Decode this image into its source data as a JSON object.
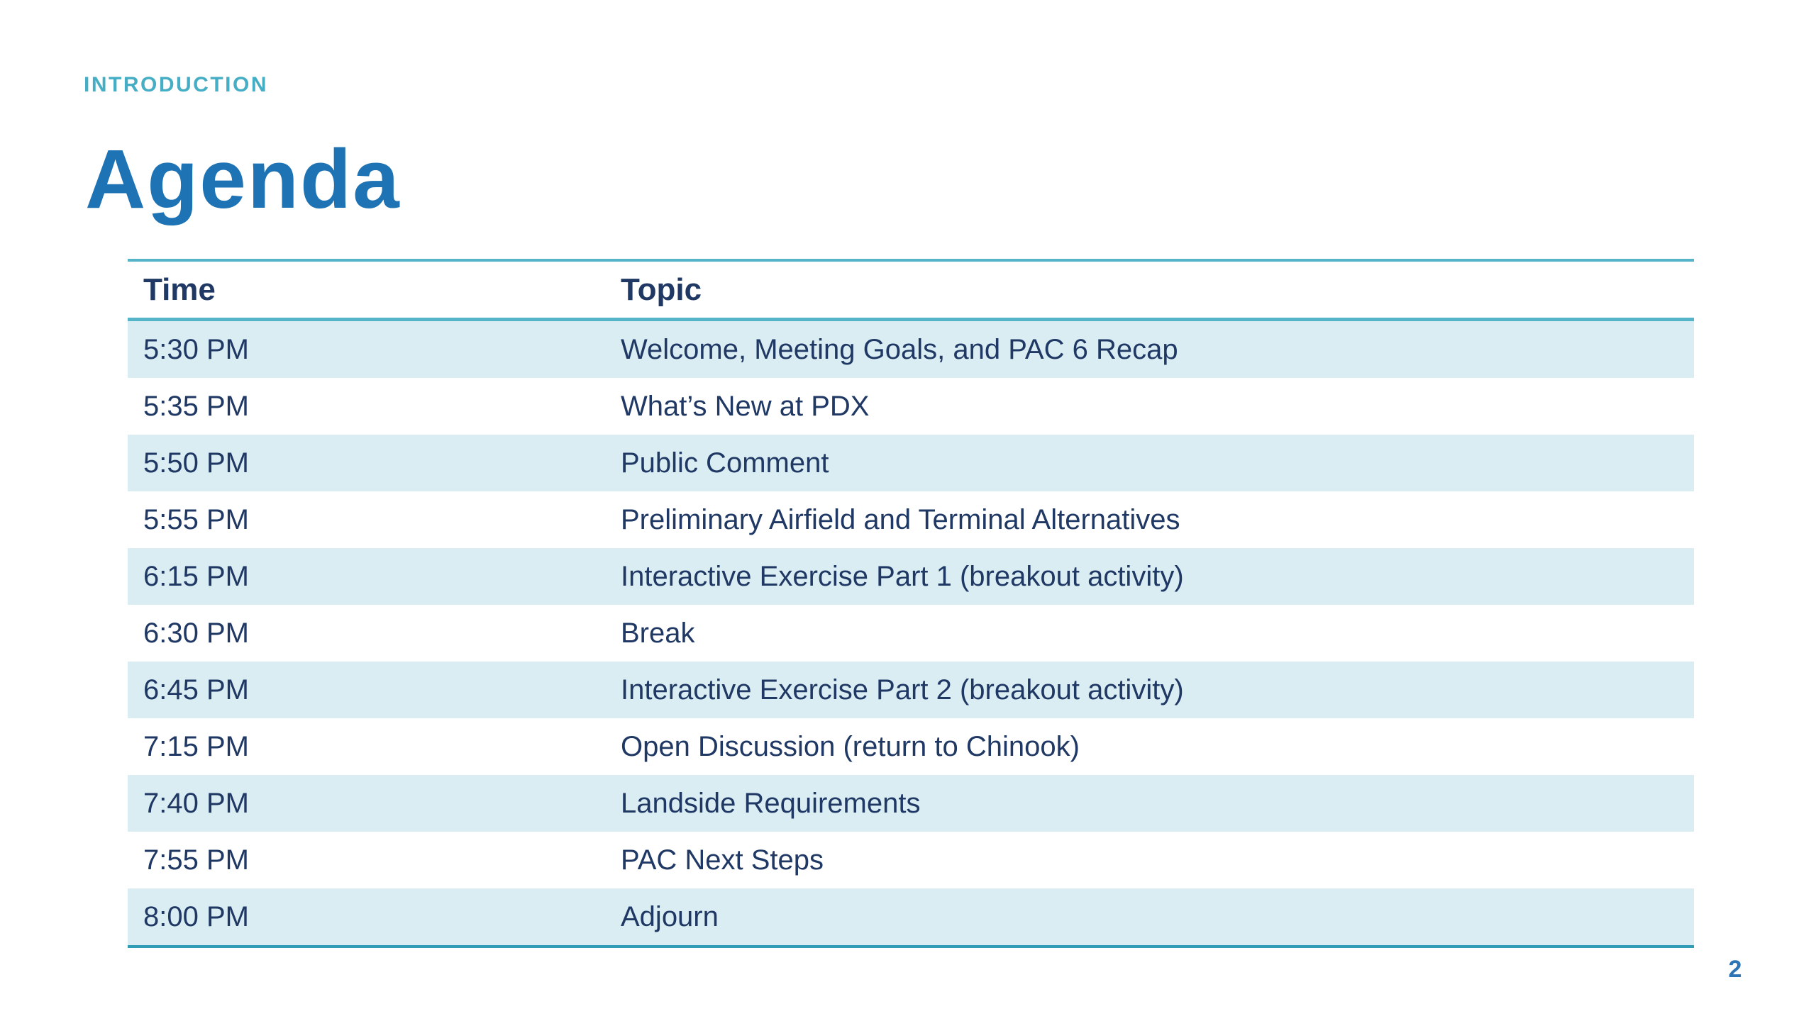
{
  "slide": {
    "section_label": "INTRODUCTION",
    "title": "Agenda",
    "page_number": "2"
  },
  "colors": {
    "accent_teal_line": "#55b4c8",
    "accent_teal_dark_line": "#2f9db6",
    "eyebrow_teal": "#45aec5",
    "title_blue": "#1e73b5",
    "table_text_navy": "#1f3864",
    "row_shade_light_blue": "#daedf3",
    "page_number_blue": "#2e75b6"
  },
  "table": {
    "headers": {
      "time": "Time",
      "topic": "Topic"
    },
    "rows": [
      {
        "time": "5:30 PM",
        "topic": "Welcome, Meeting Goals, and PAC 6 Recap"
      },
      {
        "time": "5:35 PM",
        "topic": "What’s New at PDX"
      },
      {
        "time": "5:50 PM",
        "topic": "Public Comment"
      },
      {
        "time": "5:55 PM",
        "topic": "Preliminary Airfield and Terminal Alternatives"
      },
      {
        "time": "6:15 PM",
        "topic": "Interactive Exercise Part 1 (breakout activity)"
      },
      {
        "time": "6:30 PM",
        "topic": "Break"
      },
      {
        "time": "6:45 PM",
        "topic": "Interactive Exercise Part 2 (breakout activity)"
      },
      {
        "time": "7:15 PM",
        "topic": "Open Discussion (return to Chinook)"
      },
      {
        "time": "7:40 PM",
        "topic": "Landside Requirements"
      },
      {
        "time": "7:55 PM",
        "topic": "PAC Next Steps"
      },
      {
        "time": "8:00 PM",
        "topic": "Adjourn"
      }
    ]
  }
}
